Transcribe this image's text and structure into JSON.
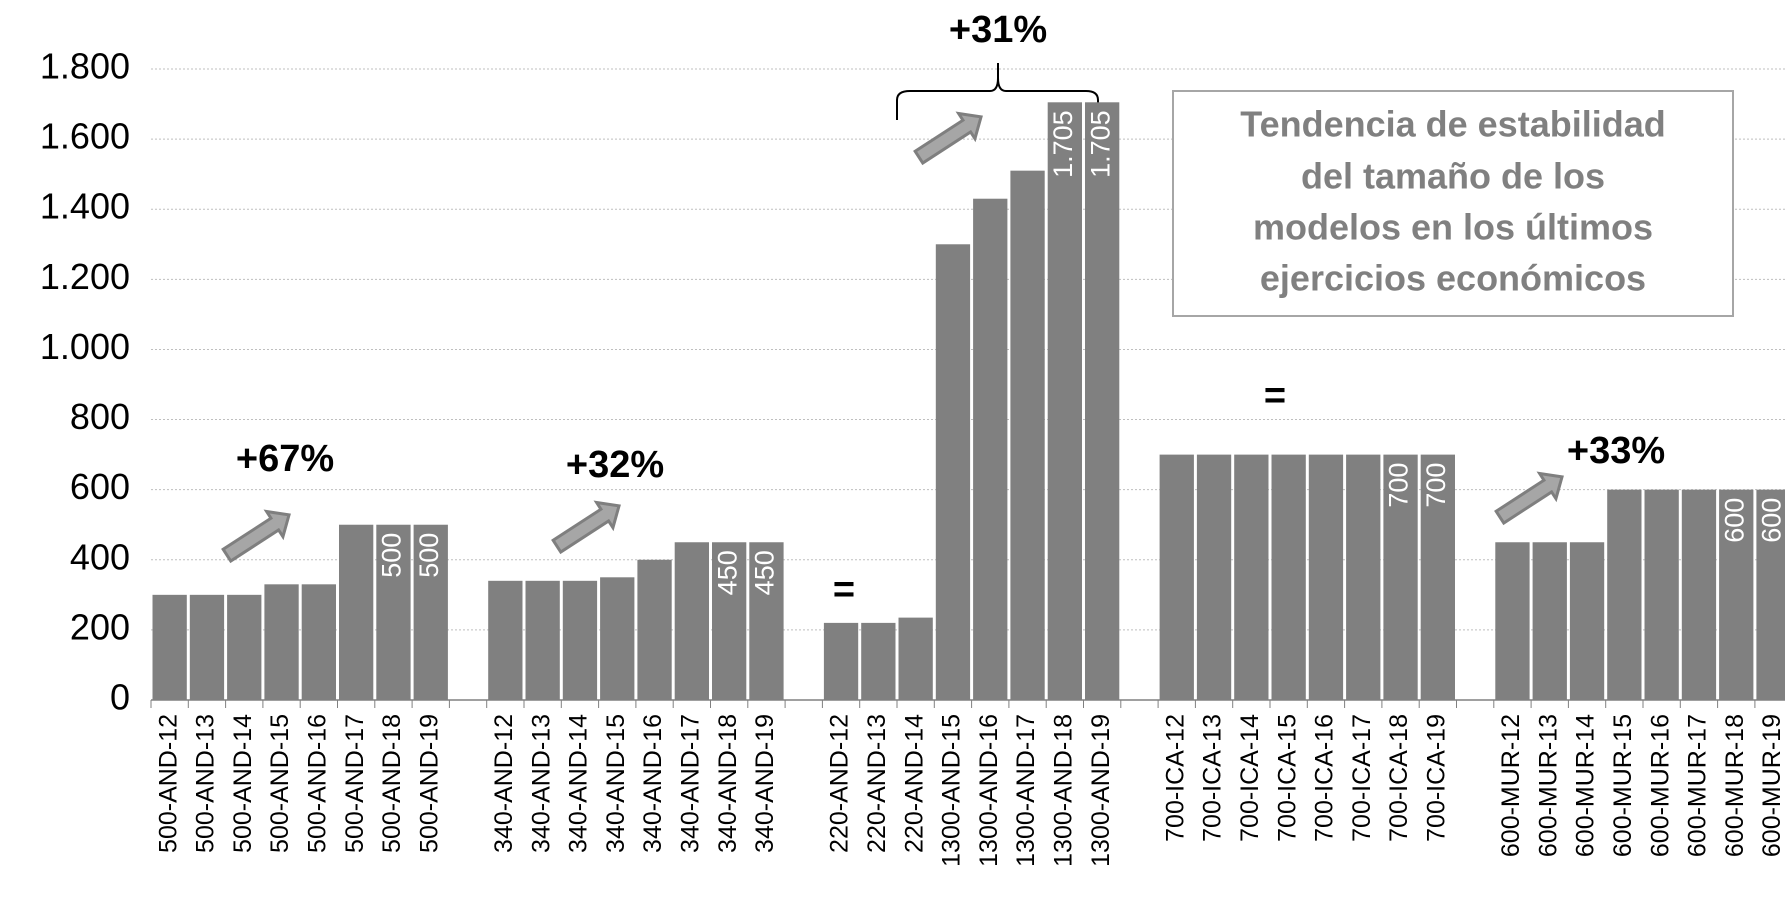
{
  "chart_data": {
    "type": "bar",
    "color": "#808080",
    "categories": [
      "500-AND-12",
      "500-AND-13",
      "500-AND-14",
      "500-AND-15",
      "500-AND-16",
      "500-AND-17",
      "500-AND-18",
      "500-AND-19",
      null,
      "340-AND-12",
      "340-AND-13",
      "340-AND-14",
      "340-AND-15",
      "340-AND-16",
      "340-AND-17",
      "340-AND-18",
      "340-AND-19",
      null,
      "220-AND-12",
      "220-AND-13",
      "220-AND-14",
      "1300-AND-15",
      "1300-AND-16",
      "1300-AND-17",
      "1300-AND-18",
      "1300-AND-19",
      null,
      "700-ICA-12",
      "700-ICA-13",
      "700-ICA-14",
      "700-ICA-15",
      "700-ICA-16",
      "700-ICA-17",
      "700-ICA-18",
      "700-ICA-19",
      null,
      "600-MUR-12",
      "600-MUR-13",
      "600-MUR-14",
      "600-MUR-15",
      "600-MUR-16",
      "600-MUR-17",
      "600-MUR-18",
      "600-MUR-19"
    ],
    "values": [
      300,
      300,
      300,
      330,
      330,
      500,
      500,
      500,
      null,
      340,
      340,
      340,
      350,
      400,
      450,
      450,
      450,
      null,
      220,
      220,
      235,
      1300,
      1430,
      1510,
      1705,
      1705,
      null,
      700,
      700,
      700,
      700,
      700,
      700,
      700,
      700,
      null,
      450,
      450,
      450,
      600,
      600,
      600,
      600,
      600
    ],
    "value_labels": [
      null,
      null,
      null,
      null,
      null,
      null,
      "500",
      "500",
      null,
      null,
      null,
      null,
      null,
      null,
      null,
      "450",
      "450",
      null,
      null,
      null,
      null,
      null,
      null,
      null,
      "1.705",
      "1.705",
      null,
      null,
      null,
      null,
      null,
      null,
      null,
      "700",
      "700",
      null,
      null,
      null,
      null,
      null,
      null,
      null,
      "600",
      "600"
    ],
    "ylim": [
      0,
      1800
    ],
    "yticks": [
      0,
      200,
      400,
      600,
      800,
      {
        "value": 1000,
        "label": "1.000"
      },
      {
        "value": 1200,
        "label": "1.200"
      },
      {
        "value": 1400,
        "label": "1.400"
      },
      {
        "value": 1600,
        "label": "1.600"
      },
      {
        "value": 1800,
        "label": "1.800"
      }
    ],
    "grid": true,
    "annotations": [
      "+67%",
      "+32%",
      "=",
      "+31%",
      "=",
      "+33%"
    ],
    "note_box": [
      "Tendencia de estabilidad",
      "del tamaño de los",
      "modelos en los últimos",
      "ejercicios económicos"
    ]
  }
}
